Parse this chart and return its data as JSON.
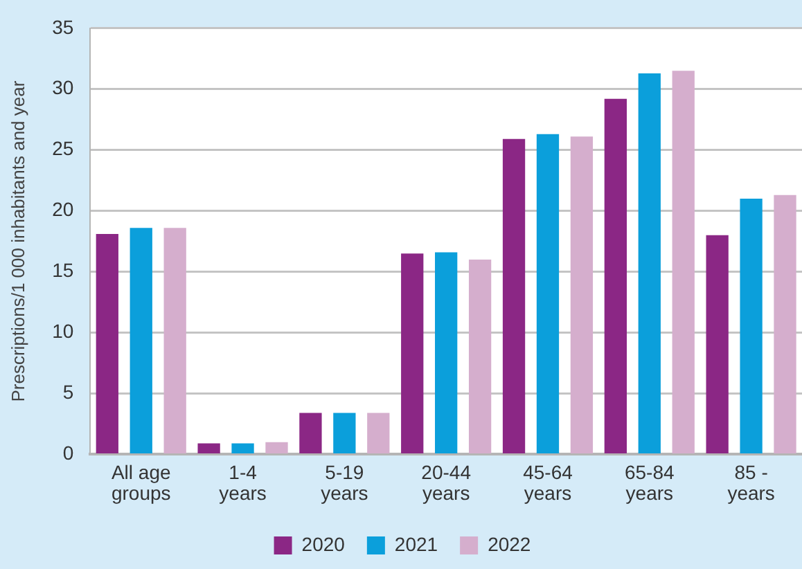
{
  "chart_data": {
    "type": "bar",
    "ylabel": "Prescriptions/1 000 inhabitants and year",
    "categories": [
      "All age groups",
      "1-4 years",
      "5-19 years",
      "20-44 years",
      "45-64 years",
      "65-84 years",
      "85 - years"
    ],
    "series": [
      {
        "name": "2020",
        "color": "#8b2785",
        "values": [
          18.1,
          0.9,
          3.4,
          16.5,
          25.9,
          29.2,
          18.0
        ]
      },
      {
        "name": "2021",
        "color": "#0b9fdb",
        "values": [
          18.6,
          0.9,
          3.4,
          16.6,
          26.3,
          31.3,
          21.0
        ]
      },
      {
        "name": "2022",
        "color": "#d5aecd",
        "values": [
          18.6,
          1.0,
          3.4,
          16.0,
          26.1,
          31.5,
          21.3
        ]
      }
    ],
    "ylim": [
      0,
      35
    ],
    "yticks": [
      0,
      5,
      10,
      15,
      20,
      25,
      30,
      35
    ],
    "grid": "y",
    "legend": "bottom"
  }
}
